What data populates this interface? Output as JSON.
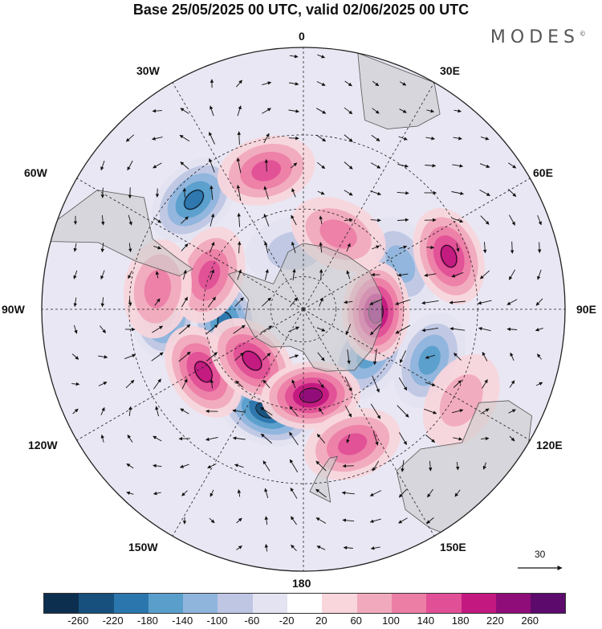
{
  "header": {
    "title": "Base 25/05/2025 00 UTC, valid 02/06/2025 00 UTC",
    "brand": "MODES",
    "brand_mark": "©"
  },
  "map": {
    "projection": "south-polar-stereographic",
    "longitude_labels": [
      "0",
      "30E",
      "60E",
      "90E",
      "120E",
      "150E",
      "180",
      "150W",
      "120W",
      "90W",
      "60W",
      "30W"
    ],
    "vector_reference": {
      "value": "30"
    },
    "anomaly_centers": [
      {
        "lon": -90,
        "lat": -49,
        "value": -200
      },
      {
        "lon": -100,
        "lat": -66,
        "value": -180
      },
      {
        "lon": -45,
        "lat": -45,
        "value": -160
      },
      {
        "lon": -160,
        "lat": -58,
        "value": -200
      },
      {
        "lon": 112,
        "lat": -50,
        "value": -150
      },
      {
        "lon": 125,
        "lat": -66,
        "value": -140
      },
      {
        "lon": 65,
        "lat": -58,
        "value": -80
      },
      {
        "lon": -8,
        "lat": -72,
        "value": -60
      },
      {
        "lon": -70,
        "lat": -60,
        "value": 150
      },
      {
        "lon": -82,
        "lat": -47,
        "value": 80
      },
      {
        "lon": -122,
        "lat": -55,
        "value": 180
      },
      {
        "lon": -135,
        "lat": -68,
        "value": 160
      },
      {
        "lon": 175,
        "lat": -64,
        "value": 200
      },
      {
        "lon": 160,
        "lat": -48,
        "value": 120
      },
      {
        "lon": 92,
        "lat": -68,
        "value": 200
      },
      {
        "lon": 70,
        "lat": -45,
        "value": 160
      },
      {
        "lon": -15,
        "lat": -48,
        "value": 120
      },
      {
        "lon": 25,
        "lat": -65,
        "value": 100
      },
      {
        "lon": 120,
        "lat": -38,
        "value": 60
      }
    ]
  },
  "colorbar": {
    "colors": [
      "#0d2f4f",
      "#17507c",
      "#2b76ad",
      "#5a9fcc",
      "#8fb5dc",
      "#bec6e3",
      "#e4e3f1",
      "#ffffff",
      "#f8d6dc",
      "#f1aabd",
      "#ec7ea6",
      "#e14f96",
      "#c2187f",
      "#8f0d78",
      "#5c0a6c"
    ],
    "ticks": [
      "-260",
      "-220",
      "-180",
      "-140",
      "-100",
      "-60",
      "-20",
      "20",
      "60",
      "100",
      "140",
      "180",
      "220",
      "260"
    ]
  }
}
